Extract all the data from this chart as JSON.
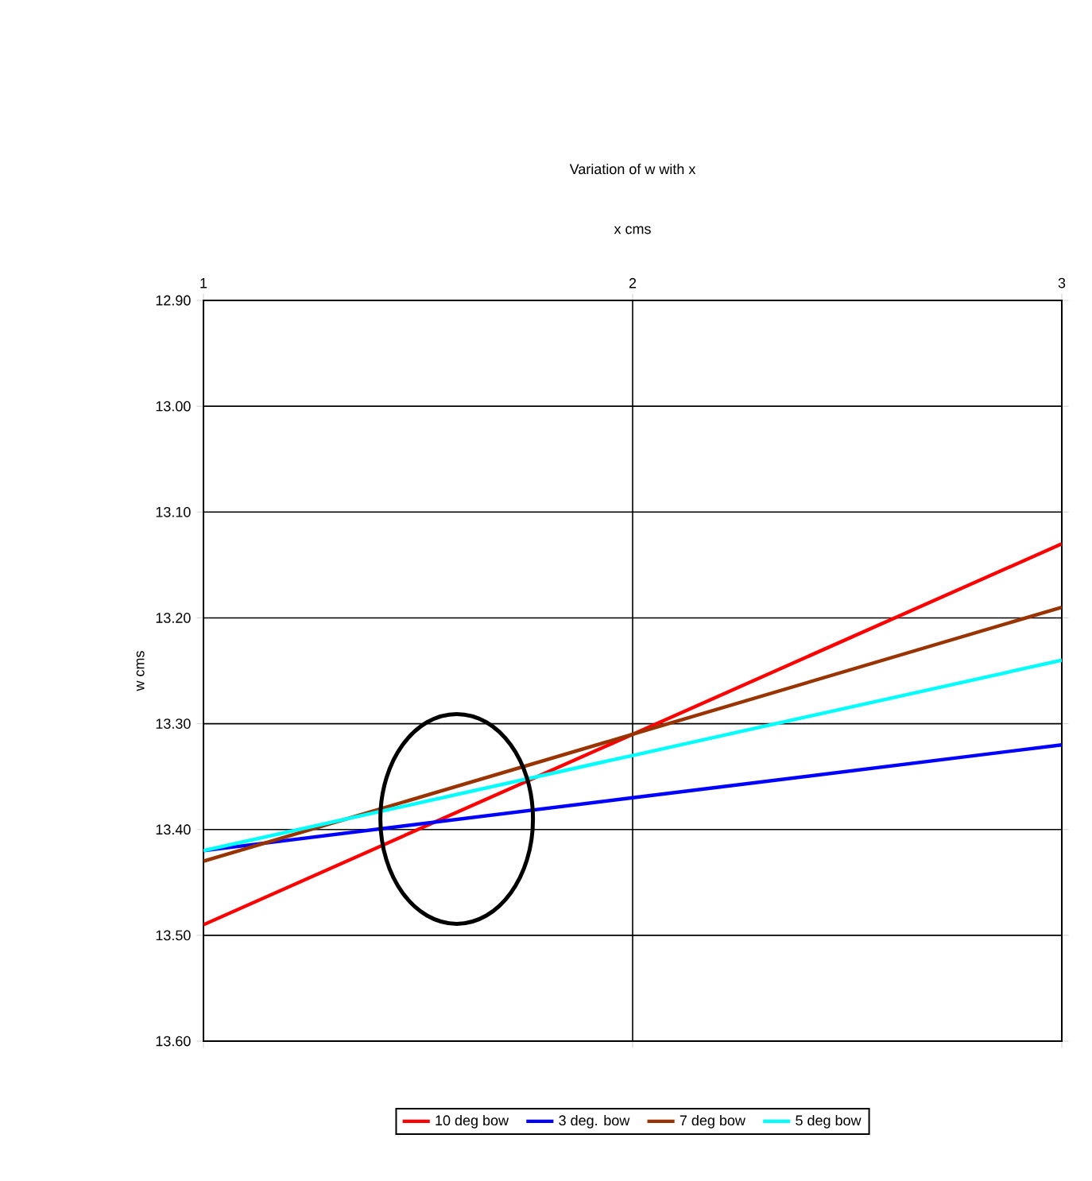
{
  "chart_data": {
    "type": "line",
    "title": "Variation of w with x",
    "xlabel": "x cms",
    "ylabel": "w cms",
    "x": [
      1,
      2,
      3
    ],
    "series": [
      {
        "name": "10 deg bow",
        "color": "#ff0000",
        "values": [
          13.49,
          13.31,
          13.13
        ]
      },
      {
        "name": "3 deg. bow",
        "color": "#0000ff",
        "values": [
          13.42,
          13.37,
          13.32
        ]
      },
      {
        "name": "7 deg bow",
        "color": "#993300",
        "values": [
          13.43,
          13.31,
          13.19
        ]
      },
      {
        "name": "5 deg bow",
        "color": "#00ffff",
        "values": [
          13.42,
          13.33,
          13.24
        ]
      }
    ],
    "xlim": [
      1,
      3
    ],
    "xticks": [
      1,
      2,
      3
    ],
    "ylim": [
      13.6,
      12.9
    ],
    "yticks": [
      {
        "value": 12.9,
        "label": "12.90"
      },
      {
        "value": 13.0,
        "label": "13.00"
      },
      {
        "value": 13.1,
        "label": "13.10"
      },
      {
        "value": 13.2,
        "label": "13.20"
      },
      {
        "value": 13.3,
        "label": "13.30"
      },
      {
        "value": 13.4,
        "label": "13.40"
      },
      {
        "value": 13.5,
        "label": "13.50"
      },
      {
        "value": 13.6,
        "label": "13.60"
      }
    ],
    "grid": true,
    "legend": "bottom",
    "marker": "none",
    "line_style": "solid"
  }
}
